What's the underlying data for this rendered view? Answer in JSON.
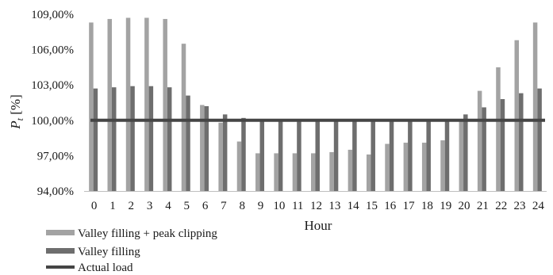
{
  "chart_data": {
    "type": "bar",
    "xlabel": "Hour",
    "ylabel_main": "P",
    "ylabel_sub": "t",
    "ylabel_unit": " [%]",
    "ylim": [
      94,
      109
    ],
    "yticks": [
      94,
      97,
      100,
      103,
      106,
      109
    ],
    "ytick_labels": [
      "94,00%",
      "97,00%",
      "100,00%",
      "103,00%",
      "106,00%",
      "109,00%"
    ],
    "categories": [
      "0",
      "1",
      "2",
      "3",
      "4",
      "5",
      "6",
      "7",
      "8",
      "9",
      "10",
      "11",
      "12",
      "13",
      "14",
      "15",
      "16",
      "17",
      "18",
      "19",
      "20",
      "21",
      "22",
      "23",
      "24"
    ],
    "grid": false,
    "legend_position": "bottom-left",
    "series": [
      {
        "name": "Valley filling + peak clipping",
        "kind": "bar",
        "color": "#a3a3a3",
        "values": [
          108.3,
          108.6,
          108.7,
          108.7,
          108.6,
          106.5,
          101.3,
          99.8,
          98.2,
          97.2,
          97.2,
          97.2,
          97.2,
          97.3,
          97.5,
          97.1,
          98.0,
          98.1,
          98.1,
          98.3,
          100.0,
          102.5,
          104.5,
          106.8,
          108.3
        ]
      },
      {
        "name": "Valley filling",
        "kind": "bar",
        "color": "#6e6e6e",
        "values": [
          102.7,
          102.8,
          102.9,
          102.9,
          102.8,
          102.1,
          101.2,
          100.5,
          100.2,
          100.0,
          100.0,
          100.0,
          100.0,
          100.0,
          100.0,
          100.0,
          100.0,
          100.0,
          100.0,
          100.0,
          100.5,
          101.1,
          101.8,
          102.3,
          102.7
        ]
      },
      {
        "name": "Actual load",
        "kind": "line",
        "color": "#454545",
        "values": [
          100,
          100,
          100,
          100,
          100,
          100,
          100,
          100,
          100,
          100,
          100,
          100,
          100,
          100,
          100,
          100,
          100,
          100,
          100,
          100,
          100,
          100,
          100,
          100,
          100
        ]
      }
    ]
  }
}
